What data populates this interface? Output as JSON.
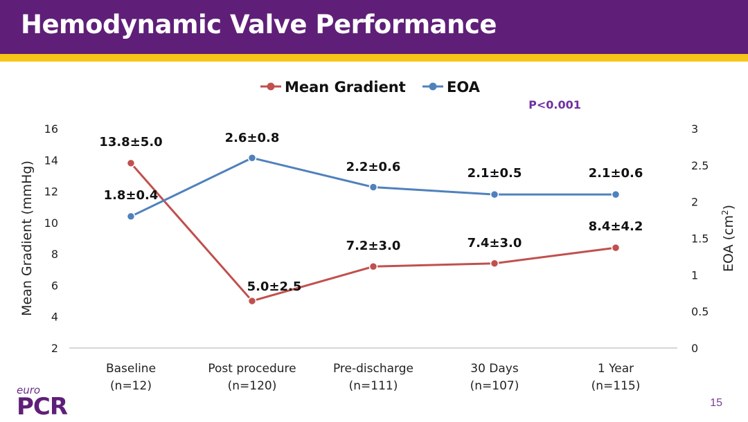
{
  "slide": {
    "title": "Hemodynamic Valve Performance",
    "page_number": "15",
    "colors": {
      "title_bar": "#5f1f78",
      "stripe": "#f5c518",
      "mean_gradient": "#c0504d",
      "eoa": "#4f81bd",
      "p_value": "#7030a0"
    }
  },
  "logo": {
    "euro": "euro",
    "pcr": "PCR"
  },
  "chart_data": {
    "type": "line",
    "categories": [
      [
        "Baseline",
        "(n=12)"
      ],
      [
        "Post procedure",
        "(n=120)"
      ],
      [
        "Pre-discharge",
        "(n=111)"
      ],
      [
        "30 Days",
        "(n=107)"
      ],
      [
        "1 Year",
        "(n=115)"
      ]
    ],
    "series": [
      {
        "name": "Mean Gradient",
        "axis": "left",
        "color": "#c0504d",
        "values": [
          13.8,
          5.0,
          7.2,
          7.4,
          8.4
        ],
        "labels": [
          "13.8±5.0",
          "5.0±2.5",
          "7.2±3.0",
          "7.4±3.0",
          "8.4±4.2"
        ]
      },
      {
        "name": "EOA",
        "axis": "right",
        "color": "#4f81bd",
        "values": [
          1.8,
          2.6,
          2.2,
          2.1,
          2.1
        ],
        "labels": [
          "1.8±0.4",
          "2.6±0.8",
          "2.2±0.6",
          "2.1±0.5",
          "2.1±0.6"
        ]
      }
    ],
    "ylabel_left": "Mean Gradient (mmHg)",
    "ylabel_right_text": "EOA  (cm",
    "ylabel_right_superscript": "2",
    "ylabel_right_close": ")",
    "ylim_left": [
      2,
      16
    ],
    "yticks_left": [
      "2",
      "4",
      "6",
      "8",
      "10",
      "12",
      "14",
      "16"
    ],
    "ylim_right": [
      0,
      3
    ],
    "yticks_right": [
      "0",
      "0.5",
      "1",
      "1.5",
      "2",
      "2.5",
      "3"
    ],
    "annotation": "P<0.001",
    "legend_position": "top-center",
    "grid": false
  }
}
